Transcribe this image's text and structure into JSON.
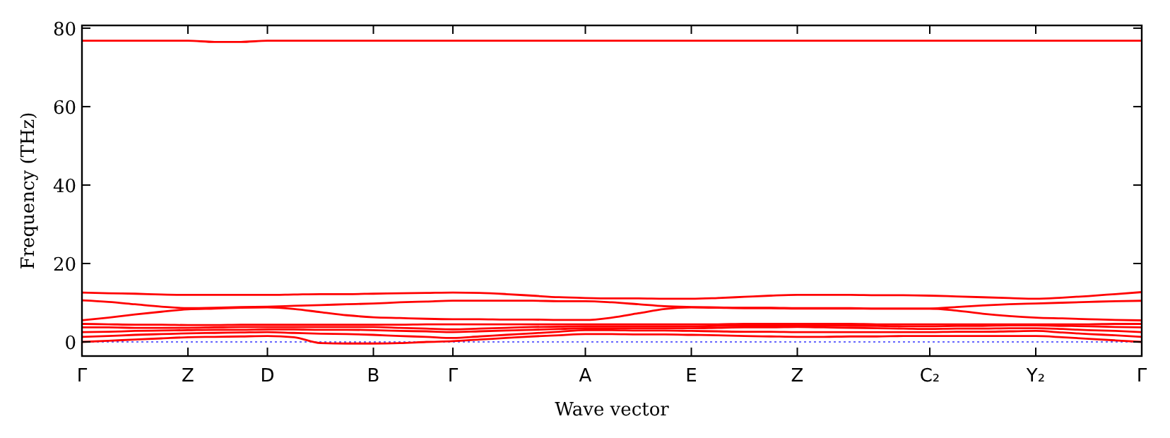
{
  "chart_data": {
    "type": "line",
    "xlabel": "Wave vector",
    "ylabel": "Frequency (THz)",
    "categories": [
      "Γ",
      null,
      null,
      null,
      "Z",
      null,
      null,
      "D",
      null,
      null,
      null,
      "B",
      null,
      null,
      "Γ",
      null,
      null,
      null,
      null,
      "A",
      null,
      null,
      null,
      "E",
      null,
      null,
      null,
      "Z",
      null,
      null,
      null,
      null,
      "C₂",
      null,
      null,
      null,
      "Y₂",
      null,
      null,
      null,
      "Γ"
    ],
    "ylim": [
      -3.6,
      80.7
    ],
    "yticks": [
      0,
      20,
      40,
      60,
      80
    ],
    "marker": "none",
    "line_style": "solid",
    "ref_lines": [
      {
        "axis": "y",
        "value": 0,
        "color": "#6666ff",
        "line_style": "dotted"
      }
    ],
    "series": [
      {
        "color": "#ff0000",
        "values": [
          76.8,
          76.8,
          76.8,
          76.8,
          76.8,
          76.5,
          76.5,
          76.8,
          76.8,
          76.8,
          76.8,
          76.8,
          76.8,
          76.8,
          76.8,
          76.8,
          76.8,
          76.8,
          76.8,
          76.8,
          76.8,
          76.8,
          76.8,
          76.8,
          76.8,
          76.8,
          76.8,
          76.8,
          76.8,
          76.8,
          76.8,
          76.8,
          76.8,
          76.8,
          76.8,
          76.8,
          76.8,
          76.8,
          76.8,
          76.8,
          76.8
        ]
      },
      {
        "color": "#ff0000",
        "values": [
          12.6,
          12.4,
          12.3,
          12.1,
          12.0,
          12.0,
          12.0,
          12.0,
          12.1,
          12.2,
          12.2,
          12.3,
          12.4,
          12.5,
          12.6,
          12.5,
          12.2,
          11.8,
          11.4,
          11.2,
          11.1,
          11.1,
          11.0,
          11.0,
          11.2,
          11.5,
          11.8,
          12.0,
          12.0,
          12.0,
          11.9,
          11.9,
          11.8,
          11.6,
          11.4,
          11.2,
          11.0,
          11.3,
          11.7,
          12.2,
          12.7
        ]
      },
      {
        "color": "#ff0000",
        "values": [
          10.6,
          10.2,
          9.6,
          9.0,
          8.6,
          8.7,
          8.9,
          9.0,
          9.2,
          9.4,
          9.6,
          9.8,
          10.1,
          10.3,
          10.5,
          10.5,
          10.5,
          10.5,
          10.4,
          10.4,
          10.1,
          9.6,
          9.1,
          8.9,
          8.8,
          8.7,
          8.7,
          8.6,
          8.6,
          8.6,
          8.5,
          8.5,
          8.5,
          8.9,
          9.3,
          9.6,
          9.8,
          10.0,
          10.2,
          10.4,
          10.5
        ]
      },
      {
        "color": "#ff0000",
        "values": [
          5.5,
          6.2,
          7.0,
          7.7,
          8.3,
          8.5,
          8.7,
          8.8,
          8.4,
          7.6,
          6.8,
          6.3,
          6.1,
          5.9,
          5.8,
          5.8,
          5.7,
          5.7,
          5.6,
          5.6,
          6.2,
          7.3,
          8.4,
          8.8,
          8.7,
          8.6,
          8.6,
          8.5,
          8.5,
          8.5,
          8.5,
          8.5,
          8.5,
          8.0,
          7.2,
          6.6,
          6.2,
          6.0,
          5.8,
          5.6,
          5.5
        ]
      },
      {
        "color": "#ff0000",
        "values": [
          4.6,
          4.5,
          4.4,
          4.4,
          4.3,
          4.3,
          4.4,
          4.4,
          4.4,
          4.4,
          4.4,
          4.4,
          4.4,
          4.5,
          4.5,
          4.5,
          4.5,
          4.5,
          4.5,
          4.5,
          4.5,
          4.5,
          4.5,
          4.5,
          4.5,
          4.6,
          4.6,
          4.6,
          4.6,
          4.6,
          4.5,
          4.5,
          4.5,
          4.5,
          4.5,
          4.5,
          4.5,
          4.5,
          4.5,
          4.6,
          4.6
        ]
      },
      {
        "color": "#ff0000",
        "values": [
          3.7,
          3.7,
          3.6,
          3.6,
          3.6,
          3.7,
          3.8,
          3.8,
          3.8,
          3.8,
          3.8,
          3.8,
          3.6,
          3.4,
          3.2,
          3.4,
          3.6,
          3.8,
          3.9,
          4.0,
          4.0,
          4.0,
          4.0,
          4.0,
          4.1,
          4.1,
          4.2,
          4.2,
          4.2,
          4.1,
          4.1,
          4.0,
          4.0,
          4.1,
          4.1,
          4.2,
          4.2,
          4.1,
          4.0,
          3.8,
          3.7
        ]
      },
      {
        "color": "#ff0000",
        "values": [
          2.5,
          2.6,
          2.8,
          2.9,
          3.0,
          3.1,
          3.1,
          3.2,
          3.2,
          3.1,
          3.1,
          3.0,
          2.8,
          2.7,
          2.5,
          2.7,
          2.9,
          3.1,
          3.3,
          3.5,
          3.5,
          3.5,
          3.5,
          3.5,
          3.6,
          3.7,
          3.7,
          3.8,
          3.7,
          3.6,
          3.5,
          3.4,
          3.3,
          3.4,
          3.4,
          3.5,
          3.5,
          3.3,
          3.0,
          2.8,
          2.5
        ]
      },
      {
        "color": "#ff0000",
        "values": [
          1.3,
          1.5,
          1.8,
          2.0,
          2.2,
          2.3,
          2.4,
          2.5,
          2.3,
          2.1,
          2.0,
          1.8,
          1.5,
          1.3,
          1.0,
          1.4,
          1.8,
          2.2,
          2.6,
          3.0,
          3.0,
          2.9,
          2.9,
          2.8,
          2.7,
          2.6,
          2.6,
          2.5,
          2.5,
          2.5,
          2.5,
          2.5,
          2.5,
          2.6,
          2.6,
          2.7,
          2.8,
          2.4,
          2.0,
          1.7,
          1.3
        ]
      },
      {
        "color": "#ff0000",
        "values": [
          0,
          0.3,
          0.6,
          0.9,
          1.2,
          1.3,
          1.4,
          1.5,
          1.2,
          -0.3,
          -0.4,
          -0.4,
          -0.3,
          0,
          0.2,
          0.6,
          1.0,
          1.4,
          1.7,
          2.0,
          2.0,
          1.9,
          1.9,
          1.8,
          1.7,
          1.5,
          1.4,
          1.3,
          1.3,
          1.4,
          1.4,
          1.5,
          1.5,
          1.5,
          1.5,
          1.5,
          1.5,
          1.2,
          0.8,
          0.4,
          0
        ]
      }
    ]
  }
}
